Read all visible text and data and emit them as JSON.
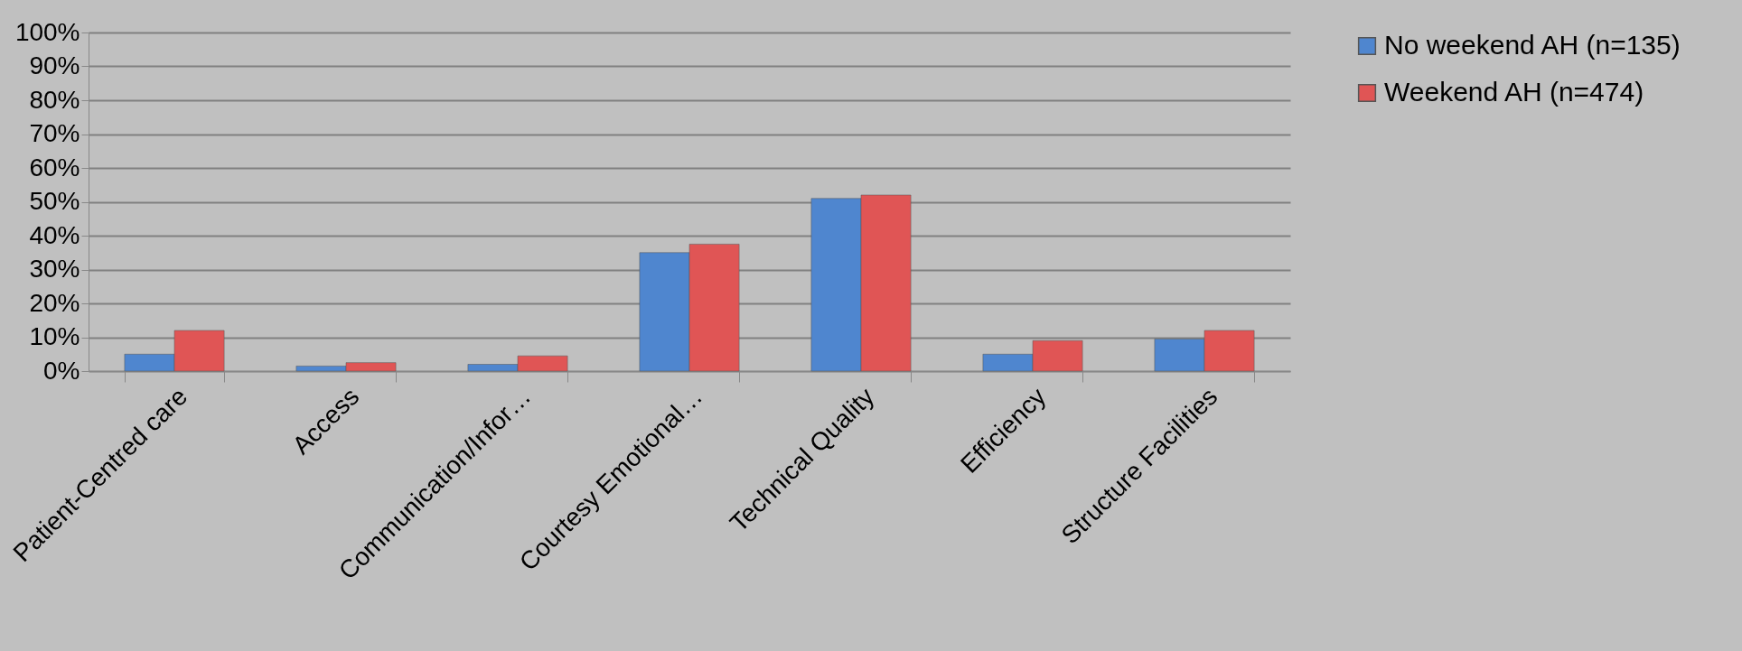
{
  "chart_data": {
    "type": "bar",
    "categories": [
      "Patient-Centred care",
      "Access",
      "Communication/Infor…",
      "Courtesy Emotional…",
      "Technical Quality",
      "Efficiency",
      "Structure Facilities"
    ],
    "series": [
      {
        "name": "No weekend AH (n=135)",
        "color": "#4f86cf",
        "values": [
          5,
          1.5,
          2,
          35,
          51,
          5,
          9.5
        ]
      },
      {
        "name": "Weekend AH (n=474)",
        "color": "#e05555",
        "values": [
          12,
          2.5,
          4.5,
          37.5,
          52,
          9,
          12
        ]
      }
    ],
    "ylim": [
      0,
      100
    ],
    "yticks": [
      {
        "value": 0,
        "label": "0%"
      },
      {
        "value": 10,
        "label": "10%"
      },
      {
        "value": 20,
        "label": "20%"
      },
      {
        "value": 30,
        "label": "30%"
      },
      {
        "value": 40,
        "label": "40%"
      },
      {
        "value": 50,
        "label": "50%"
      },
      {
        "value": 60,
        "label": "60%"
      },
      {
        "value": 70,
        "label": "70%"
      },
      {
        "value": 80,
        "label": "80%"
      },
      {
        "value": 90,
        "label": "90%"
      },
      {
        "value": 100,
        "label": "100%"
      }
    ],
    "grid": "y",
    "legend": "right"
  }
}
